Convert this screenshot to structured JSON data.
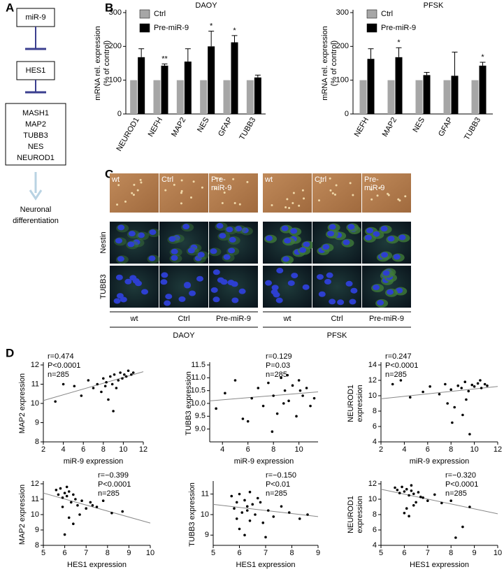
{
  "panel_labels": [
    "A",
    "B",
    "C",
    "D"
  ],
  "diagram": {
    "nodes": [
      "miR-9",
      "HES1"
    ],
    "targets": [
      "MASH1",
      "MAP2",
      "TUBB3",
      "NES",
      "NEUROD1"
    ],
    "outcome": [
      "Neuronal",
      "differentiation"
    ]
  },
  "images": {
    "overlay_labels": [
      [
        "wt"
      ],
      [
        "Ctrl"
      ],
      [
        "Pre-",
        "miR-9"
      ]
    ],
    "stains": [
      "Nestin",
      "TUBB3"
    ],
    "conditions": [
      "wt",
      "Ctrl",
      "Pre-miR-9"
    ],
    "groups": [
      "DAOY",
      "PFSK"
    ]
  },
  "chart_data": [
    {
      "type": "bar",
      "title": "DAOY",
      "ylabel": [
        "mRNA rel. expression",
        "(% of control)"
      ],
      "categories": [
        "NEUROD1",
        "NEFH",
        "MAP2",
        "NES",
        "GFAP",
        "TUBB3"
      ],
      "series": [
        {
          "name": "Ctrl",
          "color": "#a6a6a6",
          "values": [
            100,
            100,
            100,
            100,
            100,
            100
          ]
        },
        {
          "name": "Pre-miR-9",
          "color": "#000000",
          "values": [
            168,
            143,
            155,
            200,
            212,
            108
          ],
          "errors": [
            25,
            5,
            38,
            45,
            20,
            7
          ]
        }
      ],
      "significance": [
        null,
        "**",
        null,
        "*",
        "*",
        null
      ],
      "ylim": [
        0,
        300
      ],
      "yticks": [
        0,
        100,
        200,
        300
      ]
    },
    {
      "type": "bar",
      "title": "PFSK",
      "ylabel": [
        "mRNA rel. expression",
        "(% of control)"
      ],
      "categories": [
        "NEFH",
        "MAP2",
        "NES",
        "GFAP",
        "TUBB3"
      ],
      "series": [
        {
          "name": "Ctrl",
          "color": "#a6a6a6",
          "values": [
            100,
            100,
            100,
            100,
            100
          ]
        },
        {
          "name": "Pre-miR-9",
          "color": "#000000",
          "values": [
            163,
            168,
            115,
            113,
            143
          ],
          "errors": [
            30,
            28,
            8,
            70,
            10
          ]
        }
      ],
      "significance": [
        null,
        "*",
        null,
        null,
        "*"
      ],
      "ylim": [
        0,
        300
      ],
      "yticks": [
        0,
        100,
        200,
        300
      ]
    },
    {
      "type": "scatter",
      "xlabel": "miR-9 expression",
      "ylabel": [
        "MAP2 expression"
      ],
      "stats": [
        "r=0.474",
        "P<0.0001",
        "n=285"
      ],
      "stats_loc": "upper left",
      "x": [
        3.2,
        4.0,
        5.1,
        5.8,
        6.5,
        7.0,
        7.4,
        7.8,
        8.0,
        8.3,
        8.5,
        8.7,
        8.9,
        9.1,
        9.3,
        9.5,
        9.7,
        9.9,
        10.1,
        10.3,
        10.5,
        10.8,
        11.0,
        9.0,
        8.2
      ],
      "y": [
        10.1,
        11.0,
        10.9,
        10.4,
        11.2,
        10.8,
        11.0,
        10.6,
        11.3,
        11.1,
        10.2,
        11.4,
        11.0,
        11.5,
        10.8,
        11.2,
        11.6,
        11.3,
        11.5,
        11.4,
        11.7,
        11.5,
        11.6,
        9.6,
        10.9
      ],
      "fit": {
        "x": [
          2,
          12
        ],
        "y": [
          10.15,
          11.65
        ]
      },
      "xlim": [
        2,
        12
      ],
      "xticks": [
        2,
        4,
        6,
        8,
        10,
        12
      ],
      "ylim": [
        8,
        12
      ],
      "yticks": [
        8,
        9,
        10,
        11,
        12
      ]
    },
    {
      "type": "scatter",
      "xlabel": "miR-9 expression",
      "ylabel": [
        "TUBB3 expression"
      ],
      "stats": [
        "r=0.129",
        "P=0.03",
        "n=285"
      ],
      "stats_loc": "upper right",
      "x": [
        3.5,
        4.2,
        5.0,
        5.6,
        6.3,
        6.8,
        7.2,
        7.6,
        8.0,
        8.3,
        8.6,
        8.9,
        9.2,
        9.5,
        9.8,
        10.0,
        10.3,
        10.6,
        10.9,
        11.2,
        7.9,
        9.1,
        6.0,
        8.8,
        10.1
      ],
      "y": [
        9.8,
        10.4,
        10.9,
        9.4,
        10.2,
        10.6,
        9.9,
        10.8,
        10.3,
        9.6,
        11.0,
        10.5,
        10.1,
        10.7,
        9.5,
        10.9,
        10.3,
        10.6,
        9.9,
        10.2,
        8.9,
        11.1,
        9.3,
        10.0,
        10.5
      ],
      "fit": {
        "x": [
          3,
          11.5
        ],
        "y": [
          10.1,
          10.45
        ]
      },
      "xlim": [
        3,
        11.5
      ],
      "xticks": [
        4,
        6,
        8,
        10
      ],
      "ylim": [
        8.5,
        11.5
      ],
      "yticks": [
        {
          "value": 9,
          "label": "9.0"
        },
        9.5,
        {
          "value": 10,
          "label": "10.0"
        },
        10.5,
        {
          "value": 11,
          "label": "11.0"
        },
        11.5
      ]
    },
    {
      "type": "scatter",
      "xlabel": "miR-9 expression",
      "ylabel": [
        "NEUROD1",
        "expression"
      ],
      "stats": [
        "r=0.247",
        "P<0.0001",
        "n=285"
      ],
      "stats_loc": "upper left",
      "x": [
        3.0,
        3.7,
        4.5,
        5.6,
        6.2,
        7.0,
        7.5,
        8.0,
        8.3,
        8.6,
        8.9,
        9.2,
        9.5,
        9.8,
        10.0,
        10.3,
        10.6,
        10.9,
        11.1,
        8.1,
        9.0,
        9.6,
        7.7,
        10.5,
        9.3
      ],
      "y": [
        11.5,
        12.0,
        9.8,
        10.5,
        11.2,
        10.2,
        11.5,
        10.8,
        8.5,
        11.3,
        11.0,
        11.8,
        10.6,
        11.4,
        11.2,
        11.6,
        11.0,
        11.5,
        11.3,
        6.5,
        7.5,
        5.0,
        9.0,
        12.0,
        9.5
      ],
      "fit": {
        "x": [
          2,
          12
        ],
        "y": [
          9.6,
          11.2
        ]
      },
      "xlim": [
        2,
        12
      ],
      "xticks": [
        2,
        4,
        6,
        8,
        10,
        12
      ],
      "ylim": [
        4,
        14
      ],
      "yticks": [
        4,
        6,
        8,
        10,
        12,
        14
      ]
    },
    {
      "type": "scatter",
      "xlabel": "HES1 expression",
      "ylabel": [
        "MAP2 expression"
      ],
      "stats": [
        "r=−0.399",
        "P<0.0001",
        "n=285"
      ],
      "stats_loc": "upper right",
      "x": [
        5.6,
        5.7,
        5.8,
        5.9,
        6.0,
        6.1,
        6.2,
        6.3,
        6.4,
        6.5,
        6.6,
        6.8,
        7.0,
        7.2,
        7.5,
        7.8,
        8.2,
        8.7,
        5.9,
        6.2,
        6.4,
        6.1,
        6.7,
        7.3,
        6.0
      ],
      "y": [
        11.6,
        11.3,
        11.7,
        11.1,
        11.4,
        11.2,
        11.5,
        10.8,
        11.3,
        11.0,
        10.6,
        10.9,
        10.4,
        10.8,
        10.5,
        10.9,
        10.1,
        10.2,
        10.5,
        9.8,
        9.4,
        11.8,
        10.0,
        10.6,
        8.7
      ],
      "fit": {
        "x": [
          5,
          10
        ],
        "y": [
          11.4,
          9.45
        ]
      },
      "xlim": [
        5,
        10
      ],
      "xticks": [
        5,
        6,
        7,
        8,
        9,
        10
      ],
      "ylim": [
        8,
        12
      ],
      "yticks": [
        8,
        9,
        10,
        11,
        12
      ]
    },
    {
      "type": "scatter",
      "xlabel": "HES1 expression",
      "ylabel": [
        "TUBB3 expression"
      ],
      "stats": [
        "r=−0.150",
        "P<0.01",
        "n=285"
      ],
      "stats_loc": "upper right",
      "x": [
        5.7,
        5.8,
        5.9,
        6.0,
        6.1,
        6.2,
        6.3,
        6.4,
        6.5,
        6.6,
        6.7,
        6.9,
        7.1,
        7.3,
        7.6,
        7.9,
        8.3,
        8.6,
        6.0,
        6.2,
        6.4,
        6.8,
        7.0,
        6.3,
        5.9
      ],
      "y": [
        10.9,
        10.3,
        10.6,
        11.0,
        10.1,
        10.7,
        10.4,
        9.7,
        10.5,
        10.0,
        10.8,
        9.6,
        10.2,
        9.9,
        10.4,
        10.1,
        9.8,
        10.0,
        9.3,
        9.0,
        11.1,
        10.6,
        8.9,
        10.2,
        9.8
      ],
      "fit": {
        "x": [
          5,
          9
        ],
        "y": [
          10.5,
          9.9
        ]
      },
      "xlim": [
        5,
        9
      ],
      "xticks": [
        5,
        6,
        7,
        8,
        9
      ],
      "ylim": [
        8.5,
        11.5
      ],
      "yticks": [
        9,
        10,
        11
      ]
    },
    {
      "type": "scatter",
      "xlabel": "HES1 expression",
      "ylabel": [
        "NEUROD1",
        "expression"
      ],
      "stats": [
        "r=−0.320",
        "P<0.0001",
        "n=285"
      ],
      "stats_loc": "upper right",
      "x": [
        5.6,
        5.7,
        5.8,
        5.9,
        6.0,
        6.1,
        6.2,
        6.3,
        6.4,
        6.5,
        6.6,
        6.8,
        7.0,
        7.3,
        7.6,
        8.0,
        8.5,
        8.8,
        6.0,
        6.2,
        6.4,
        6.3,
        6.7,
        8.2,
        6.1
      ],
      "y": [
        11.5,
        11.2,
        10.8,
        11.6,
        11.0,
        11.3,
        10.5,
        11.1,
        10.7,
        9.6,
        10.9,
        10.2,
        9.8,
        10.6,
        9.5,
        9.8,
        6.4,
        9.0,
        8.2,
        7.8,
        9.2,
        11.8,
        10.3,
        5.0,
        8.8
      ],
      "fit": {
        "x": [
          5,
          10
        ],
        "y": [
          11.3,
          8.1
        ]
      },
      "xlim": [
        5,
        10
      ],
      "xticks": [
        5,
        6,
        7,
        8,
        9,
        10
      ],
      "ylim": [
        4,
        12
      ],
      "yticks": [
        4,
        6,
        8,
        10,
        12
      ]
    }
  ]
}
